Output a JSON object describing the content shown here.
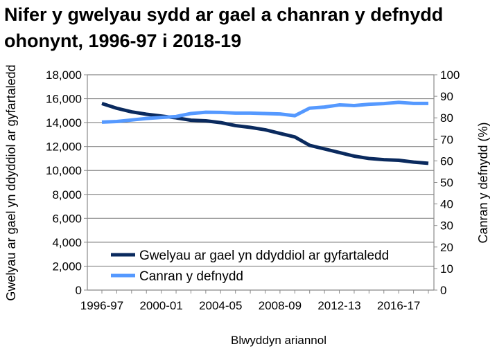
{
  "chart_data": {
    "type": "line",
    "title": "Nifer y gwelyau sydd ar gael a chanran y defnydd ohonynt, 1996-97 i 2018-19",
    "xlabel": "Blwyddyn ariannol",
    "ylabel": "Gwelyau ar gael yn ddyddiol ar gyfartaledd",
    "y2label": "Canran y defnydd (%)",
    "ylim": [
      0,
      18000
    ],
    "y2lim": [
      0,
      100
    ],
    "yticks": [
      "0",
      "2,000",
      "4,000",
      "6,000",
      "8,000",
      "10,000",
      "12,000",
      "14,000",
      "16,000",
      "18,000"
    ],
    "y2ticks": [
      "0",
      "10",
      "20",
      "30",
      "40",
      "50",
      "60",
      "70",
      "80",
      "90",
      "100"
    ],
    "categories": [
      "1996-97",
      "1997-98",
      "1998-99",
      "1999-00",
      "2000-01",
      "2001-02",
      "2002-03",
      "2003-04",
      "2004-05",
      "2005-06",
      "2006-07",
      "2007-08",
      "2008-09",
      "2009-10",
      "2010-11",
      "2011-12",
      "2012-13",
      "2013-14",
      "2014-15",
      "2015-16",
      "2016-17",
      "2017-18",
      "2018-19"
    ],
    "xtick_labels": [
      "1996-97",
      "2000-01",
      "2004-05",
      "2008-09",
      "2012-13",
      "2016-17"
    ],
    "grid": true,
    "legend_placement": "bottom-left",
    "series": [
      {
        "name": "Gwelyau ar gael yn ddyddiol ar gyfartaledd",
        "axis": "left",
        "color": "#0a2a5e",
        "values": [
          15600,
          15200,
          14900,
          14700,
          14550,
          14400,
          14200,
          14150,
          14000,
          13750,
          13600,
          13400,
          13100,
          12800,
          12100,
          11800,
          11500,
          11200,
          11000,
          10900,
          10850,
          10700,
          10600
        ]
      },
      {
        "name": "Canran y defnydd",
        "axis": "right",
        "color": "#5599ff",
        "values": [
          78,
          78.3,
          79,
          79.7,
          80.2,
          80.6,
          82,
          82.6,
          82.5,
          82.2,
          82.2,
          82,
          81.8,
          81,
          84.5,
          85,
          86,
          85.7,
          86.3,
          86.6,
          87.2,
          86.7,
          86.7
        ]
      }
    ]
  }
}
